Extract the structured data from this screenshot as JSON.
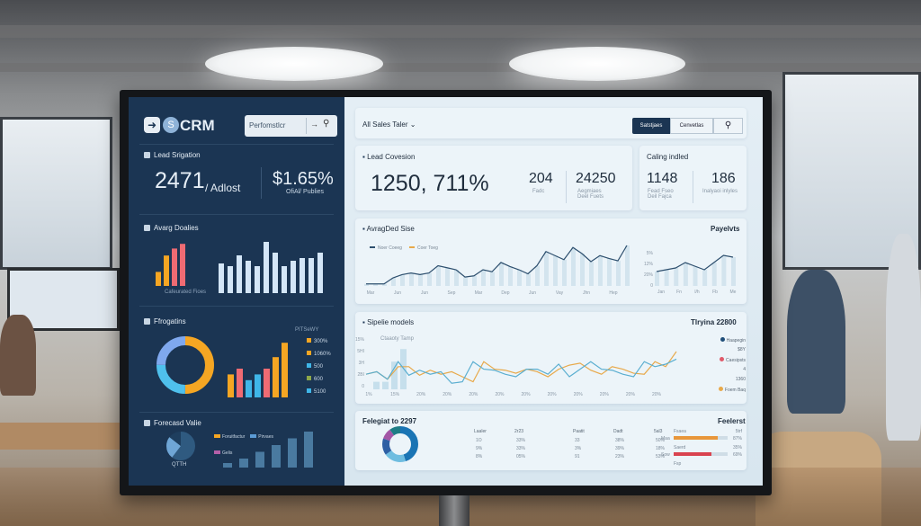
{
  "left_panel": {
    "logo": "CRM",
    "search_placeholder": "Perfomstlcr",
    "lead_section": {
      "title": "Lead Srigation",
      "value": "2471",
      "value_suffix": "/ Adlost",
      "metric": "$1.65%",
      "metric_label": "OfiAl/ Publies"
    },
    "avg_section": {
      "title": "Avarg Doalies",
      "small_bars": [
        0.3,
        0.65,
        0.8,
        0.9
      ],
      "small_bar_colors": [
        "#f5a623",
        "#f5a623",
        "#ef6b73",
        "#ef6b73"
      ],
      "small_label": "Cafeurated Fioes",
      "big_bars": [
        0.55,
        0.5,
        0.7,
        0.6,
        0.5,
        0.95,
        0.75,
        0.5,
        0.6,
        0.65,
        0.65,
        0.75
      ]
    },
    "prog_section": {
      "title": "Ffrogatins",
      "legend_title": "PITSeWY",
      "legend": [
        {
          "label": "300%",
          "color": "#f5a623"
        },
        {
          "label": "1060%",
          "color": "#f5a623"
        },
        {
          "label": "500",
          "color": "#3fb6e8"
        },
        {
          "label": "600",
          "color": "#8da84a"
        },
        {
          "label": "5100",
          "color": "#3fb6e8"
        }
      ],
      "donut": [
        {
          "value": 0.5,
          "color": "#f5a623"
        },
        {
          "value": 0.25,
          "color": "#4fc0ec"
        },
        {
          "value": 0.25,
          "color": "#7fa8ee"
        }
      ],
      "bars": [
        {
          "v": 0.4,
          "c": "#f5a623"
        },
        {
          "v": 0.5,
          "c": "#ef6b73"
        },
        {
          "v": 0.3,
          "c": "#3fb6e8"
        },
        {
          "v": 0.4,
          "c": "#3fb6e8"
        },
        {
          "v": 0.5,
          "c": "#ef6b73"
        },
        {
          "v": 0.7,
          "c": "#f5a623"
        },
        {
          "v": 0.95,
          "c": "#f5a623"
        }
      ]
    },
    "forecast_section": {
      "title": "Forecasd Valie",
      "pie_label": "QTTH",
      "legend": [
        {
          "label": "Foruitfactur",
          "color": "#f5a623"
        },
        {
          "label": "Pirvaes",
          "color": "#5b9bd5"
        },
        {
          "label": "Gelis",
          "color": "#b45fa8"
        }
      ],
      "bars": [
        0.1,
        0.2,
        0.35,
        0.5,
        0.65,
        0.8
      ]
    }
  },
  "right_panel": {
    "filter_label": "All Sales Taler",
    "buttons": {
      "primary": "Satstjaes",
      "secondary": "Cenvetlas"
    },
    "lead_conversion": {
      "title": "Lead Covesion",
      "value": "1250, 711%",
      "stat1": {
        "value": "204",
        "label": "Fadc"
      },
      "stat2": {
        "value": "24250",
        "label": "Aegmiaes Deel Fuets"
      }
    },
    "calling": {
      "title": "Caling indled",
      "stat1": {
        "value": "1148",
        "label": "Fead Fseo Deil Fajca"
      },
      "stat2": {
        "value": "186",
        "label": "Inalyaoi inlyles"
      }
    },
    "avg_deal": {
      "title": "AvragDed Sise",
      "legend": [
        {
          "label": "Noer Coeeg",
          "color": "#2d4f6e"
        },
        {
          "label": "Coer Toeg",
          "color": "#e8a94a"
        }
      ],
      "x_labels": [
        "Mar",
        "Jun",
        "Jun",
        "Sep",
        "Mar",
        "Dep",
        "Jun",
        "Vay",
        "Jhn",
        "Hep"
      ],
      "values": [
        5,
        5,
        5,
        20,
        28,
        32,
        28,
        32,
        50,
        45,
        40,
        22,
        25,
        40,
        35,
        58,
        48,
        40,
        30,
        50,
        85,
        75,
        65,
        95,
        80,
        60,
        75,
        68,
        62,
        100
      ]
    },
    "payments": {
      "title": "Payelvts",
      "y_labels": [
        "5%",
        "12%",
        "20%",
        "0"
      ],
      "x_labels": [
        "Jan",
        "Fn",
        "l/h",
        "Fb",
        "Me"
      ],
      "values": [
        40,
        45,
        50,
        65,
        55,
        45,
        65,
        85,
        80
      ]
    },
    "pipeline": {
      "title": "Sipelie models",
      "total": "Tlryina 22800",
      "series_label": "Ctaaoty Tamp",
      "y_labels": [
        "15%",
        "5HI",
        "3H",
        "2BI",
        "0"
      ],
      "x_labels": [
        "1%",
        "15%",
        "20%",
        "20%",
        "20%",
        "20%",
        "20%",
        "20%",
        "20%",
        "20%",
        "20%",
        "20%"
      ],
      "bars": [
        15,
        15,
        55,
        80
      ],
      "blue": [
        30,
        35,
        20,
        55,
        28,
        38,
        30,
        35,
        12,
        15,
        55,
        40,
        38,
        30,
        25,
        40,
        40,
        30,
        50,
        25,
        40,
        55,
        40,
        38,
        30,
        25,
        55,
        45,
        50,
        60
      ],
      "orange": [
        30,
        35,
        20,
        45,
        45,
        28,
        38,
        30,
        35,
        25,
        15,
        55,
        40,
        38,
        32,
        40,
        35,
        25,
        40,
        48,
        52,
        38,
        30,
        45,
        40,
        32,
        30,
        55,
        45,
        75
      ],
      "legend": [
        {
          "label": "Haapegin",
          "color": "#1f4e79"
        },
        {
          "label": "$8Y",
          "color": ""
        },
        {
          "label": "Caesipsts",
          "color": "#e05a6a"
        },
        {
          "label": "4",
          "color": ""
        },
        {
          "label": "1360",
          "color": ""
        },
        {
          "label": "Foem Baq",
          "color": "#e8a94a"
        }
      ]
    },
    "forecast": {
      "title": "Felegiat to 2297",
      "donut": [
        {
          "value": 0.45,
          "color": "#1a74b4"
        },
        {
          "value": 0.2,
          "color": "#6fbde0"
        },
        {
          "value": 0.15,
          "color": "#2e5fa4"
        },
        {
          "value": 0.1,
          "color": "#a356a6"
        },
        {
          "value": 0.1,
          "color": "#1e7d86"
        }
      ],
      "table": {
        "headers": [
          "Laaler",
          "2r23",
          "Paatit",
          "Dadt",
          "5al3"
        ],
        "rows": [
          [
            "1O",
            "33%",
            "33",
            "38%",
            "50%"
          ],
          [
            "9%",
            "33%",
            "3%",
            "39%",
            "18%"
          ],
          [
            "8%",
            "05%",
            "91",
            "23%",
            "53%"
          ]
        ]
      },
      "progress_title": "Feelerst",
      "progress": [
        {
          "label": "Maa",
          "name": "Fsaea",
          "value": 0.82,
          "right": "5trf",
          "pct": "87%",
          "color": "#e8963a"
        },
        {
          "label": "Sow",
          "name": "Saerd",
          "value": 0.7,
          "right": "35%",
          "pct": "69%",
          "color": "#d9434f"
        }
      ],
      "progress_footer": "Fsp"
    }
  }
}
